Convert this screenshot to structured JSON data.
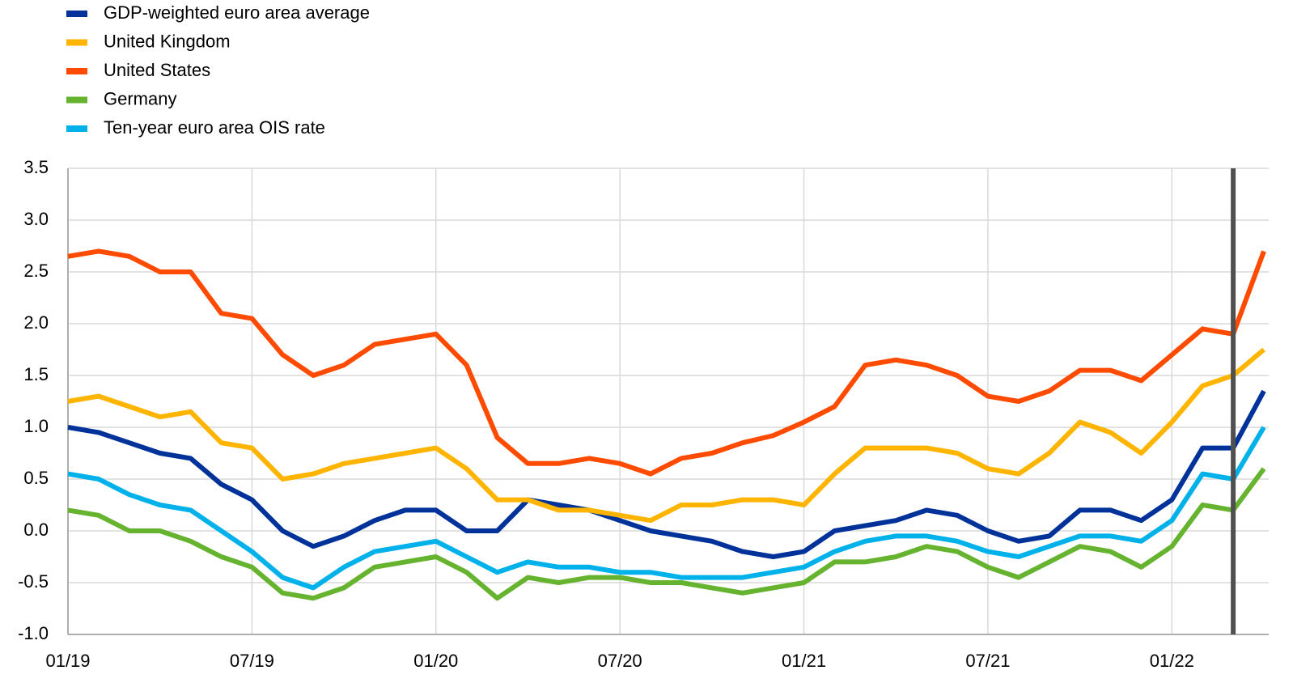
{
  "chart_data": {
    "type": "line",
    "x": [
      "01/19",
      "02/19",
      "03/19",
      "04/19",
      "05/19",
      "06/19",
      "07/19",
      "08/19",
      "09/19",
      "10/19",
      "11/19",
      "12/19",
      "01/20",
      "02/20",
      "03/20",
      "04/20",
      "05/20",
      "06/20",
      "07/20",
      "08/20",
      "09/20",
      "10/20",
      "11/20",
      "12/20",
      "01/21",
      "02/21",
      "03/21",
      "04/21",
      "05/21",
      "06/21",
      "07/21",
      "08/21",
      "09/21",
      "10/21",
      "11/21",
      "12/21",
      "01/22",
      "02/22",
      "03/22",
      "04/22"
    ],
    "series": [
      {
        "name": "GDP-weighted euro area average",
        "color": "#003299",
        "values": [
          1.0,
          0.95,
          0.85,
          0.75,
          0.7,
          0.45,
          0.3,
          0.0,
          -0.15,
          -0.05,
          0.1,
          0.2,
          0.2,
          0.0,
          0.0,
          0.3,
          0.25,
          0.2,
          0.1,
          0.0,
          -0.05,
          -0.1,
          -0.2,
          -0.25,
          -0.2,
          0.0,
          0.05,
          0.1,
          0.2,
          0.15,
          0.0,
          -0.1,
          -0.05,
          0.2,
          0.2,
          0.1,
          0.3,
          0.8,
          0.8,
          1.35
        ]
      },
      {
        "name": "United Kingdom",
        "color": "#ffb400",
        "values": [
          1.25,
          1.3,
          1.2,
          1.1,
          1.15,
          0.85,
          0.8,
          0.5,
          0.55,
          0.65,
          0.7,
          0.75,
          0.8,
          0.6,
          0.3,
          0.3,
          0.2,
          0.2,
          0.15,
          0.1,
          0.25,
          0.25,
          0.3,
          0.3,
          0.25,
          0.55,
          0.8,
          0.8,
          0.8,
          0.75,
          0.6,
          0.55,
          0.75,
          1.05,
          0.95,
          0.75,
          1.05,
          1.4,
          1.5,
          1.75
        ]
      },
      {
        "name": "United States",
        "color": "#ff4b00",
        "values": [
          2.65,
          2.7,
          2.65,
          2.5,
          2.5,
          2.1,
          2.05,
          1.7,
          1.5,
          1.6,
          1.8,
          1.85,
          1.9,
          1.6,
          0.9,
          0.65,
          0.65,
          0.7,
          0.65,
          0.55,
          0.7,
          0.75,
          0.85,
          0.92,
          1.05,
          1.2,
          1.6,
          1.65,
          1.6,
          1.5,
          1.3,
          1.25,
          1.35,
          1.55,
          1.55,
          1.45,
          1.7,
          1.95,
          1.9,
          2.7
        ]
      },
      {
        "name": "Germany",
        "color": "#65b32e",
        "values": [
          0.2,
          0.15,
          0.0,
          0.0,
          -0.1,
          -0.25,
          -0.35,
          -0.6,
          -0.65,
          -0.55,
          -0.35,
          -0.3,
          -0.25,
          -0.4,
          -0.65,
          -0.45,
          -0.5,
          -0.45,
          -0.45,
          -0.5,
          -0.5,
          -0.55,
          -0.6,
          -0.55,
          -0.5,
          -0.3,
          -0.3,
          -0.25,
          -0.15,
          -0.2,
          -0.35,
          -0.45,
          -0.3,
          -0.15,
          -0.2,
          -0.35,
          -0.15,
          0.25,
          0.2,
          0.6
        ]
      },
      {
        "name": "Ten-year euro area OIS rate",
        "color": "#00b1ea",
        "values": [
          0.55,
          0.5,
          0.35,
          0.25,
          0.2,
          0.0,
          -0.2,
          -0.45,
          -0.55,
          -0.35,
          -0.2,
          -0.15,
          -0.1,
          -0.25,
          -0.4,
          -0.3,
          -0.35,
          -0.35,
          -0.4,
          -0.4,
          -0.45,
          -0.45,
          -0.45,
          -0.4,
          -0.35,
          -0.2,
          -0.1,
          -0.05,
          -0.05,
          -0.1,
          -0.2,
          -0.25,
          -0.15,
          -0.05,
          -0.05,
          -0.1,
          0.1,
          0.55,
          0.5,
          1.0
        ]
      }
    ],
    "xlim": [
      "01/19",
      "04/22"
    ],
    "xticks": [
      "01/19",
      "07/19",
      "01/20",
      "07/20",
      "01/21",
      "07/21",
      "01/22"
    ],
    "ylim": [
      -1,
      3.5
    ],
    "yticks": [
      {
        "value": -1,
        "label": "-1.0"
      },
      -0.5,
      {
        "value": 0,
        "label": "0.0"
      },
      0.5,
      {
        "value": 1,
        "label": "1.0"
      },
      1.5,
      {
        "value": 2,
        "label": "2.0"
      },
      2.5,
      {
        "value": 3,
        "label": "3.0"
      },
      3.5
    ],
    "grid": true,
    "vline": "03/22",
    "vline_color": "#505050"
  }
}
